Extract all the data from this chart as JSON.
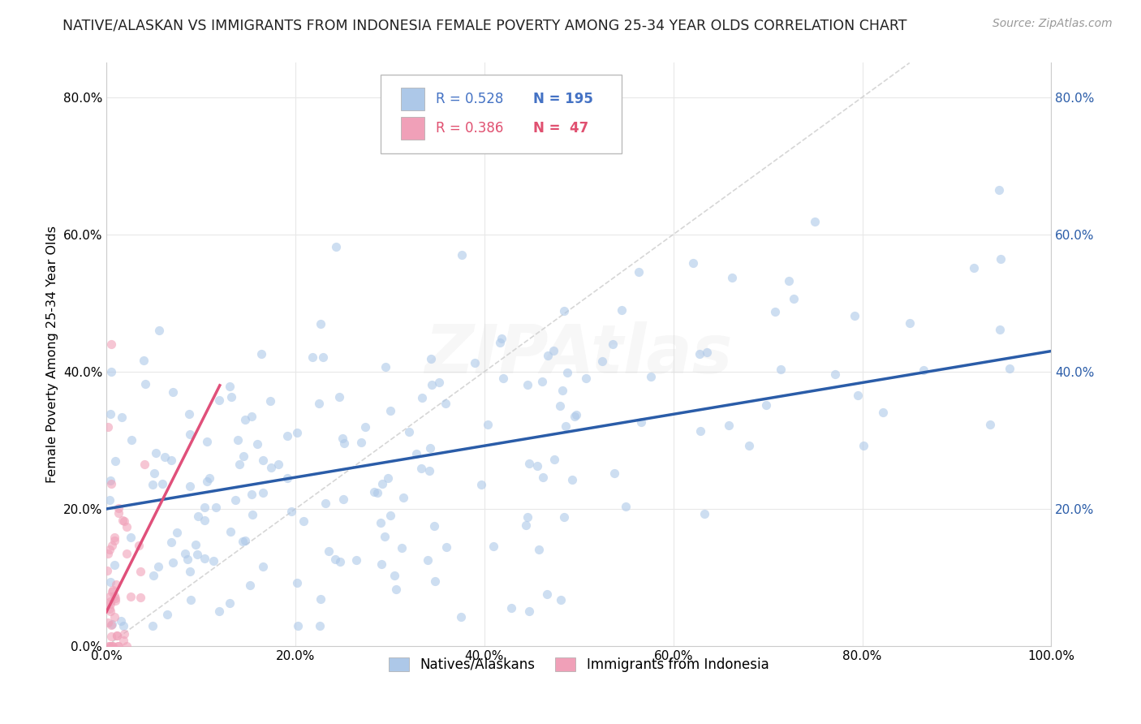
{
  "title": "NATIVE/ALASKAN VS IMMIGRANTS FROM INDONESIA FEMALE POVERTY AMONG 25-34 YEAR OLDS CORRELATION CHART",
  "source": "Source: ZipAtlas.com",
  "ylabel_text": "Female Poverty Among 25-34 Year Olds",
  "r_blue": 0.528,
  "n_blue": 195,
  "r_pink": 0.386,
  "n_pink": 47,
  "blue_color": "#adc8e8",
  "blue_line_color": "#2a5ca8",
  "pink_color": "#f0a0b8",
  "pink_line_color": "#e0507a",
  "title_fontsize": 12.5,
  "legend_r_color_blue": "#4472c4",
  "legend_r_color_pink": "#e05070",
  "legend_n_color_blue": "#4472c4",
  "legend_n_color_pink": "#e05070",
  "watermark": "ZIPAtlas",
  "xlim": [
    0.0,
    1.0
  ],
  "ylim": [
    0.0,
    0.85
  ],
  "xtick_positions": [
    0.0,
    0.2,
    0.4,
    0.6,
    0.8,
    1.0
  ],
  "xtick_labels": [
    "0.0%",
    "20.0%",
    "40.0%",
    "60.0%",
    "80.0%",
    "100.0%"
  ],
  "ytick_positions": [
    0.0,
    0.2,
    0.4,
    0.6,
    0.8
  ],
  "ytick_labels": [
    "0.0%",
    "20.0%",
    "40.0%",
    "60.0%",
    "80.0%"
  ],
  "right_ytick_positions": [
    0.2,
    0.4,
    0.6,
    0.8
  ],
  "right_ytick_labels": [
    "20.0%",
    "40.0%",
    "60.0%",
    "80.0%"
  ],
  "background_color": "#ffffff",
  "grid_color": "#e8e8e8",
  "scatter_alpha": 0.6,
  "scatter_size": 65,
  "blue_trend_x0": 0.0,
  "blue_trend_y0": 0.2,
  "blue_trend_x1": 1.0,
  "blue_trend_y1": 0.43,
  "pink_trend_x0": 0.0,
  "pink_trend_y0": 0.05,
  "pink_trend_x1": 0.12,
  "pink_trend_y1": 0.38
}
